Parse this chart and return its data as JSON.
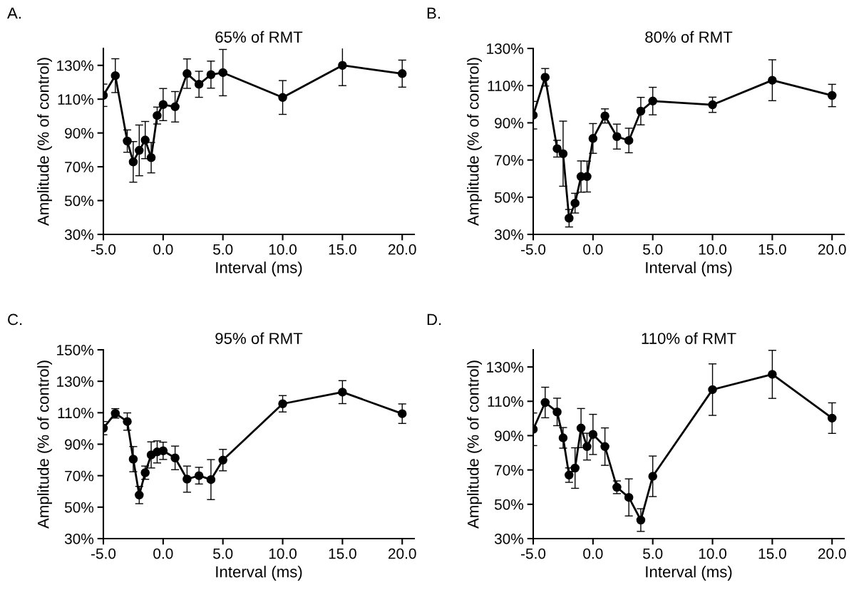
{
  "chart_data": [
    {
      "type": "line",
      "title": "65% of RMT",
      "xlabel": "Interval (ms)",
      "ylabel": "Amplitude (% of control)",
      "annotations": [
        "A."
      ],
      "marker": "circle",
      "line_style": "solid",
      "grid": false,
      "legend": false,
      "x": [
        -5,
        -4,
        -3,
        -2.5,
        -2,
        -1.5,
        -1,
        -0.5,
        0,
        1,
        2,
        3,
        4,
        5,
        10,
        15,
        20
      ],
      "xlim": [
        -5,
        21
      ],
      "xticks": [
        {
          "value": -5,
          "label": "-5.0"
        },
        {
          "value": 0,
          "label": "0.0"
        },
        {
          "value": 5,
          "label": "5.0"
        },
        {
          "value": 10,
          "label": "10.0"
        },
        {
          "value": 15,
          "label": "15.0"
        },
        {
          "value": 20,
          "label": "20.0"
        }
      ],
      "ylim": [
        30,
        140
      ],
      "yticks": [
        {
          "value": 30,
          "label": "30%"
        },
        {
          "value": 50,
          "label": "50%"
        },
        {
          "value": 70,
          "label": "70%"
        },
        {
          "value": 90,
          "label": "90%"
        },
        {
          "value": 110,
          "label": "110%"
        },
        {
          "value": 130,
          "label": "130%"
        }
      ],
      "series": [
        {
          "color": "#000000",
          "values": [
            112.3,
            123.9,
            85.2,
            72.9,
            79.7,
            85.8,
            75.4,
            100.3,
            106.8,
            105.5,
            125.1,
            118.8,
            124.5,
            125.7,
            111.0,
            130.0,
            125.1
          ],
          "errors": [
            6.6,
            10,
            6.6,
            12,
            15,
            11,
            9,
            5,
            9.5,
            9,
            8.7,
            7.7,
            8,
            13.7,
            10,
            12,
            8
          ]
        }
      ]
    },
    {
      "type": "line",
      "title": "80% of RMT",
      "xlabel": "Interval (ms)",
      "ylabel": "Amplitude (% of control)",
      "annotations": [
        "B."
      ],
      "marker": "circle",
      "line_style": "solid",
      "grid": false,
      "legend": false,
      "x": [
        -5,
        -4,
        -3,
        -2.5,
        -2,
        -1.5,
        -1,
        -0.5,
        0,
        1,
        2,
        3,
        4,
        5,
        10,
        15,
        20
      ],
      "xlim": [
        -5,
        21
      ],
      "xticks": [
        {
          "value": -5,
          "label": "-5.0"
        },
        {
          "value": 0,
          "label": "0.0"
        },
        {
          "value": 5,
          "label": "5.0"
        },
        {
          "value": 10,
          "label": "10.0"
        },
        {
          "value": 15,
          "label": "15.0"
        },
        {
          "value": 20,
          "label": "20.0"
        }
      ],
      "ylim": [
        30,
        130
      ],
      "yticks": [
        {
          "value": 30,
          "label": "30%"
        },
        {
          "value": 50,
          "label": "50%"
        },
        {
          "value": 70,
          "label": "70%"
        },
        {
          "value": 90,
          "label": "90%"
        },
        {
          "value": 110,
          "label": "110%"
        },
        {
          "value": 130,
          "label": "130%"
        }
      ],
      "series": [
        {
          "color": "#000000",
          "values": [
            94.1,
            114.5,
            76.1,
            73.4,
            38.7,
            46.8,
            61.1,
            61.1,
            81.6,
            93.7,
            82.6,
            80.5,
            96.3,
            101.7,
            99.7,
            112.9,
            104.7
          ],
          "errors": [
            7.4,
            4.7,
            4.5,
            17.5,
            4.7,
            5.3,
            8.4,
            8.3,
            8,
            3.8,
            6.7,
            6.6,
            7.4,
            7.4,
            4.1,
            11,
            6
          ]
        }
      ]
    },
    {
      "type": "line",
      "title": "95% of RMT",
      "xlabel": "Interval (ms)",
      "ylabel": "Amplitude (% of control)",
      "annotations": [
        "C."
      ],
      "marker": "circle",
      "line_style": "solid",
      "grid": false,
      "legend": false,
      "x": [
        -5,
        -4,
        -3,
        -2.5,
        -2,
        -1.5,
        -1,
        -0.5,
        0,
        1,
        2,
        3,
        4,
        5,
        10,
        15,
        20
      ],
      "xlim": [
        -5,
        21
      ],
      "xticks": [
        {
          "value": -5,
          "label": "-5.0"
        },
        {
          "value": 0,
          "label": "0.0"
        },
        {
          "value": 5,
          "label": "5.0"
        },
        {
          "value": 10,
          "label": "10.0"
        },
        {
          "value": 15,
          "label": "15.0"
        },
        {
          "value": 20,
          "label": "20.0"
        }
      ],
      "ylim": [
        30,
        150
      ],
      "yticks": [
        {
          "value": 30,
          "label": "30%"
        },
        {
          "value": 50,
          "label": "50%"
        },
        {
          "value": 70,
          "label": "70%"
        },
        {
          "value": 90,
          "label": "90%"
        },
        {
          "value": 110,
          "label": "110%"
        },
        {
          "value": 130,
          "label": "130%"
        },
        {
          "value": 150,
          "label": "150%"
        }
      ],
      "series": [
        {
          "color": "#000000",
          "values": [
            100.2,
            109.6,
            104.4,
            80.5,
            57.7,
            71.9,
            83.2,
            85.1,
            85.8,
            81.3,
            67.8,
            70.0,
            67.5,
            79.9,
            115.7,
            123.1,
            109.4
          ],
          "errors": [
            4.2,
            3,
            5.5,
            8,
            5.5,
            4.2,
            8.3,
            7,
            5.5,
            7.5,
            8.3,
            5.3,
            12.7,
            6.8,
            5.2,
            7.3,
            6.2
          ]
        }
      ]
    },
    {
      "type": "line",
      "title": "110% of RMT",
      "xlabel": "Interval (ms)",
      "ylabel": "Amplitude (% of control)",
      "annotations": [
        "D."
      ],
      "marker": "circle",
      "line_style": "solid",
      "grid": false,
      "legend": false,
      "x": [
        -5,
        -4,
        -3,
        -2.5,
        -2,
        -1.5,
        -1,
        -0.5,
        0,
        1,
        2,
        3,
        4,
        5,
        10,
        15,
        20
      ],
      "xlim": [
        -5,
        21
      ],
      "xticks": [
        {
          "value": -5,
          "label": "-5.0"
        },
        {
          "value": 0,
          "label": "0.0"
        },
        {
          "value": 5,
          "label": "5.0"
        },
        {
          "value": 10,
          "label": "10.0"
        },
        {
          "value": 15,
          "label": "15.0"
        },
        {
          "value": 20,
          "label": "20.0"
        }
      ],
      "ylim": [
        30,
        140
      ],
      "yticks": [
        {
          "value": 30,
          "label": "30%"
        },
        {
          "value": 50,
          "label": "50%"
        },
        {
          "value": 70,
          "label": "70%"
        },
        {
          "value": 90,
          "label": "90%"
        },
        {
          "value": 110,
          "label": "110%"
        },
        {
          "value": 130,
          "label": "130%"
        }
      ],
      "series": [
        {
          "color": "#000000",
          "values": [
            93.7,
            109.3,
            103.8,
            88.7,
            67.0,
            71.1,
            94.4,
            83.6,
            90.7,
            83.6,
            59.9,
            54.0,
            40.8,
            66.3,
            116.8,
            125.7,
            100.2
          ],
          "errors": [
            9.5,
            8.9,
            8,
            6,
            4.2,
            11.8,
            11.4,
            7.8,
            11.7,
            10.9,
            3.7,
            10.8,
            6.6,
            11.8,
            15,
            14,
            8.9
          ]
        }
      ]
    }
  ]
}
